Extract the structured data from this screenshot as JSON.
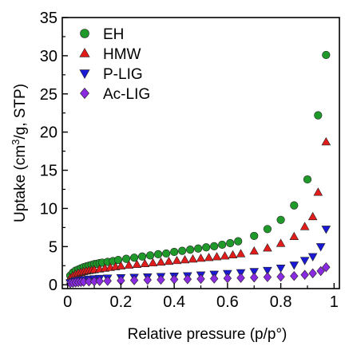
{
  "chart_data": {
    "type": "scatter",
    "xlabel": "Relative pressure (p/p°)",
    "ylabel_parts": [
      "Uptake (cm",
      "3",
      "/g, STP)"
    ],
    "xlim": [
      -0.02,
      1.02
    ],
    "ylim": [
      -0.5,
      35
    ],
    "x_ticks": [
      0,
      0.2,
      0.4,
      0.6,
      0.8,
      1
    ],
    "x_tick_labels": [
      "0",
      "0.2",
      "0.4",
      "0.6",
      "0.8",
      "1"
    ],
    "y_ticks": [
      0,
      5,
      10,
      15,
      20,
      25,
      30,
      35
    ],
    "y_tick_labels": [
      "0",
      "5",
      "10",
      "15",
      "20",
      "25",
      "30",
      "35"
    ],
    "legend_position": "top-left",
    "series": [
      {
        "name": "EH",
        "color": "#1f9a2a",
        "marker": "circle",
        "x": [
          0.01,
          0.02,
          0.03,
          0.04,
          0.05,
          0.06,
          0.07,
          0.08,
          0.09,
          0.1,
          0.11,
          0.12,
          0.13,
          0.15,
          0.17,
          0.19,
          0.22,
          0.25,
          0.28,
          0.31,
          0.34,
          0.37,
          0.4,
          0.43,
          0.46,
          0.49,
          0.52,
          0.55,
          0.58,
          0.61,
          0.64,
          0.7,
          0.75,
          0.8,
          0.85,
          0.9,
          0.94,
          0.97
        ],
        "y": [
          1.2,
          1.6,
          1.85,
          2.0,
          2.15,
          2.3,
          2.4,
          2.5,
          2.6,
          2.7,
          2.75,
          2.85,
          2.9,
          3.0,
          3.1,
          3.25,
          3.4,
          3.55,
          3.7,
          3.85,
          4.0,
          4.1,
          4.3,
          4.45,
          4.6,
          4.75,
          4.9,
          5.05,
          5.25,
          5.45,
          5.7,
          6.4,
          7.3,
          8.5,
          10.4,
          13.8,
          22.2,
          30.1
        ]
      },
      {
        "name": "HMW",
        "color": "#e21b1b",
        "marker": "triangle-up",
        "x": [
          0.01,
          0.02,
          0.03,
          0.04,
          0.05,
          0.06,
          0.07,
          0.08,
          0.09,
          0.1,
          0.12,
          0.14,
          0.16,
          0.18,
          0.2,
          0.23,
          0.26,
          0.29,
          0.32,
          0.35,
          0.38,
          0.41,
          0.44,
          0.47,
          0.5,
          0.53,
          0.56,
          0.59,
          0.62,
          0.65,
          0.7,
          0.75,
          0.8,
          0.85,
          0.89,
          0.92,
          0.94,
          0.97
        ],
        "y": [
          0.9,
          1.15,
          1.35,
          1.5,
          1.6,
          1.7,
          1.78,
          1.85,
          1.9,
          1.95,
          2.05,
          2.15,
          2.25,
          2.35,
          2.45,
          2.55,
          2.65,
          2.75,
          2.85,
          2.95,
          3.05,
          3.15,
          3.25,
          3.35,
          3.45,
          3.55,
          3.65,
          3.75,
          3.9,
          4.05,
          4.4,
          4.8,
          5.4,
          6.3,
          7.6,
          8.9,
          12.1,
          18.7
        ]
      },
      {
        "name": "P-LIG",
        "color": "#1a1ad6",
        "marker": "triangle-down",
        "x": [
          0.01,
          0.02,
          0.03,
          0.04,
          0.05,
          0.06,
          0.08,
          0.1,
          0.12,
          0.15,
          0.2,
          0.25,
          0.3,
          0.35,
          0.4,
          0.45,
          0.5,
          0.55,
          0.6,
          0.65,
          0.7,
          0.75,
          0.8,
          0.85,
          0.89,
          0.92,
          0.95,
          0.97
        ],
        "y": [
          0.3,
          0.45,
          0.55,
          0.6,
          0.65,
          0.7,
          0.75,
          0.8,
          0.85,
          0.9,
          0.95,
          1.0,
          1.05,
          1.1,
          1.15,
          1.2,
          1.3,
          1.4,
          1.5,
          1.6,
          1.75,
          1.9,
          2.2,
          2.6,
          3.2,
          3.7,
          5.0,
          7.3
        ]
      },
      {
        "name": "Ac-LIG",
        "color": "#8a2be2",
        "marker": "diamond",
        "x": [
          0.01,
          0.02,
          0.03,
          0.04,
          0.05,
          0.06,
          0.08,
          0.1,
          0.12,
          0.15,
          0.2,
          0.25,
          0.3,
          0.35,
          0.4,
          0.45,
          0.5,
          0.55,
          0.6,
          0.65,
          0.7,
          0.75,
          0.8,
          0.85,
          0.89,
          0.92,
          0.95,
          0.97
        ],
        "y": [
          0.2,
          0.25,
          0.3,
          0.33,
          0.36,
          0.38,
          0.42,
          0.45,
          0.48,
          0.5,
          0.55,
          0.6,
          0.63,
          0.66,
          0.7,
          0.73,
          0.77,
          0.8,
          0.85,
          0.9,
          0.95,
          1.0,
          1.05,
          1.15,
          1.3,
          1.5,
          1.8,
          2.3
        ]
      }
    ]
  }
}
